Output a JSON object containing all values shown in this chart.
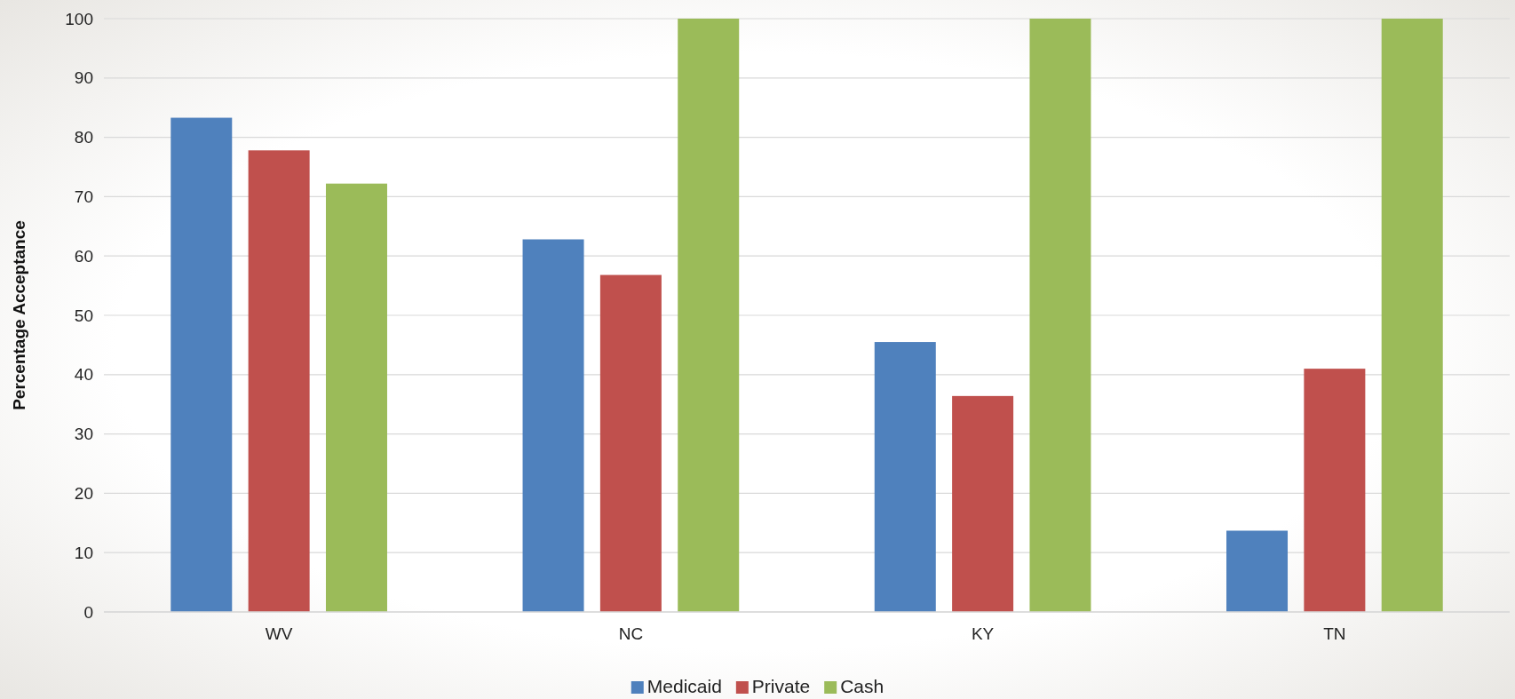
{
  "chart_data": {
    "type": "bar",
    "ylabel": "Percentage Acceptance",
    "categories": [
      "WV",
      "NC",
      "KY",
      "TN"
    ],
    "series": [
      {
        "name": "Medicaid",
        "color": "#4f81bd",
        "values": [
          83.3,
          62.8,
          45.5,
          13.7
        ]
      },
      {
        "name": "Private",
        "color": "#c0504d",
        "values": [
          77.8,
          56.8,
          36.4,
          41.0
        ]
      },
      {
        "name": "Cash",
        "color": "#9bbb59",
        "values": [
          72.2,
          100,
          100,
          100
        ]
      }
    ],
    "ylim": [
      0,
      100
    ],
    "yticks": [
      0,
      10,
      20,
      30,
      40,
      50,
      60,
      70,
      80,
      90,
      100
    ],
    "grid": "y",
    "legend": "bottom"
  }
}
